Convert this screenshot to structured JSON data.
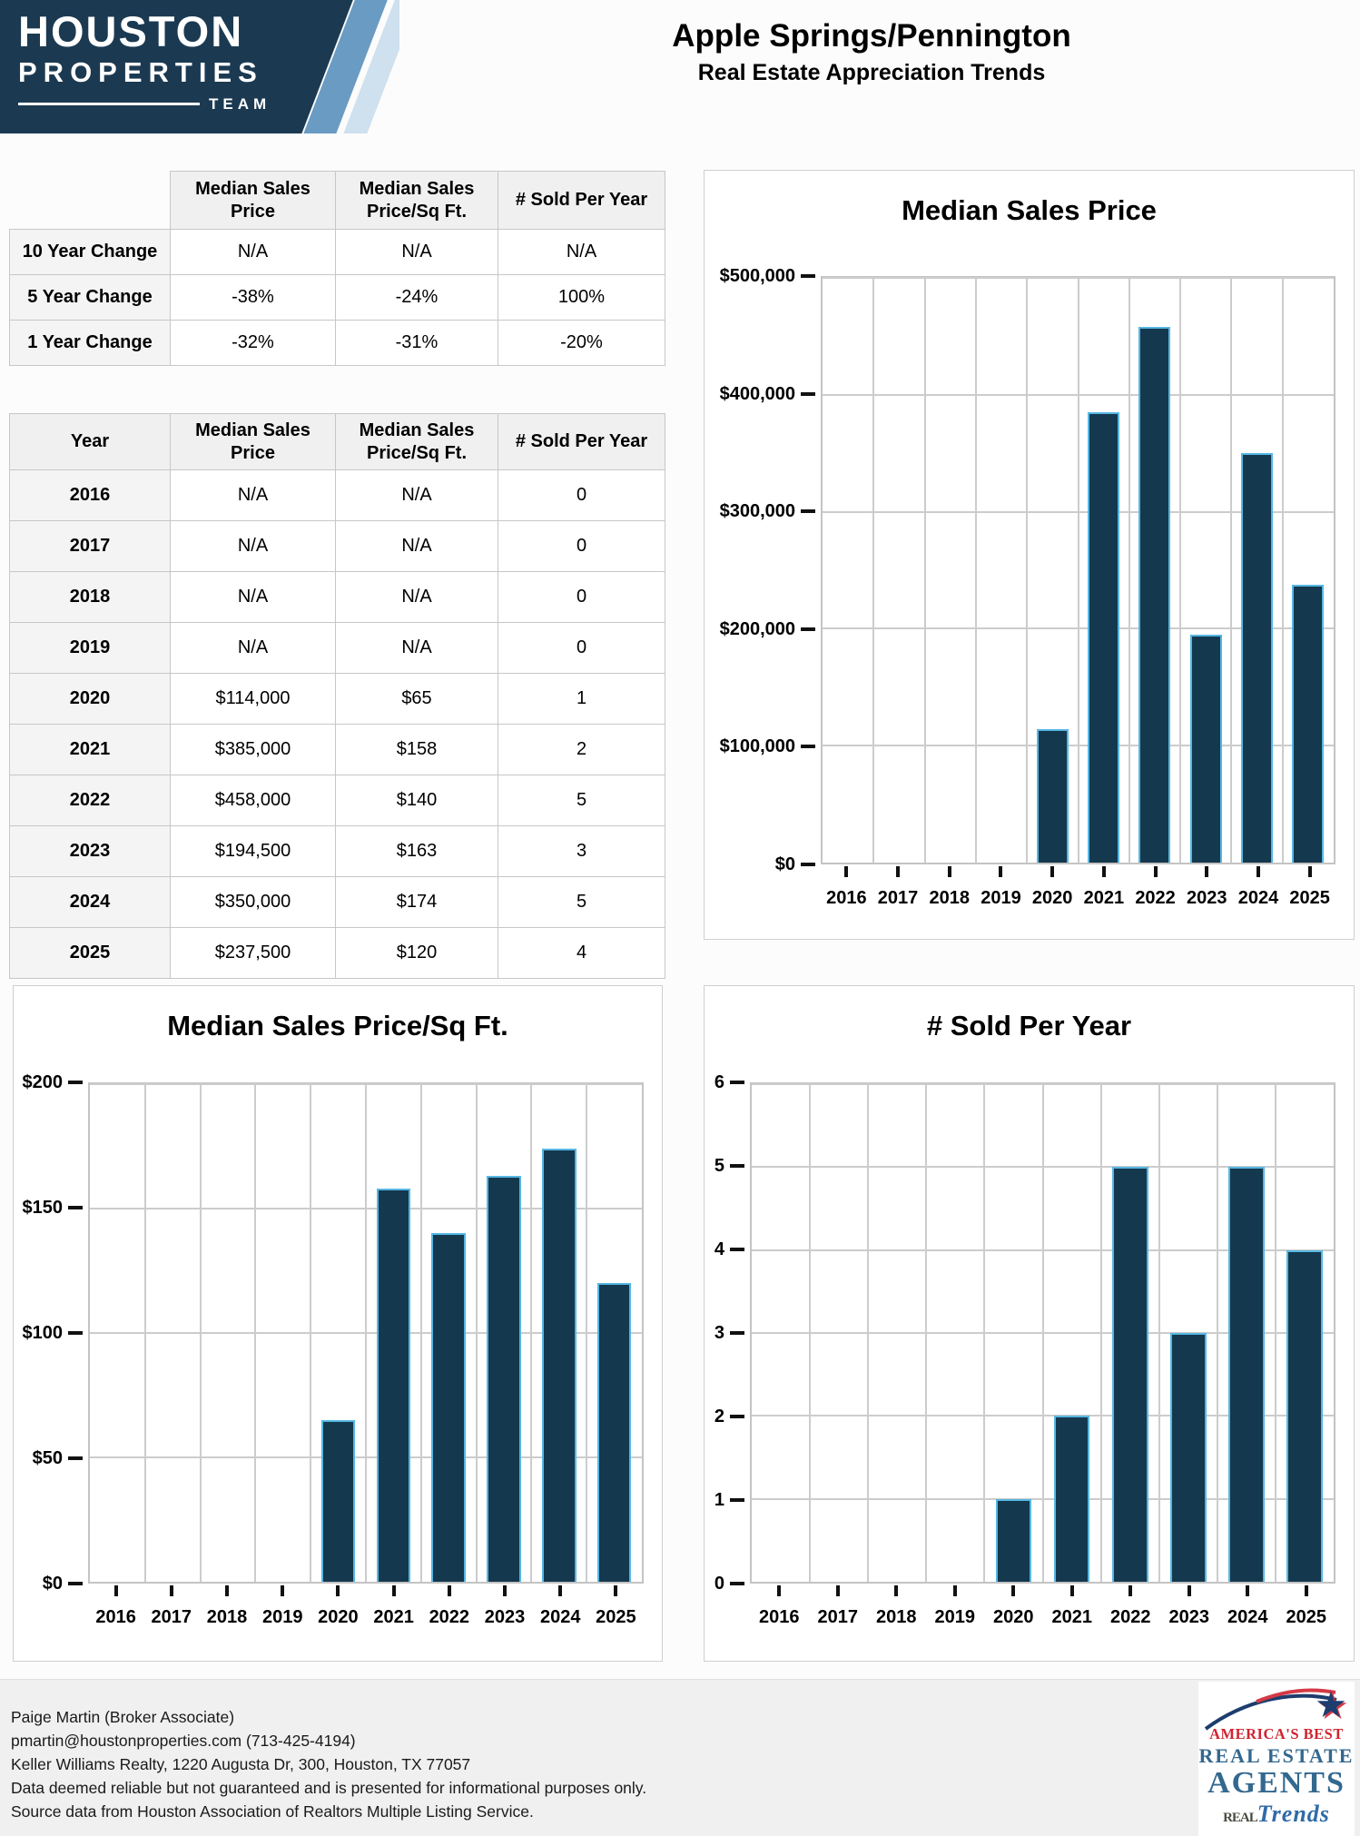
{
  "colors": {
    "bar_fill": "#14384e",
    "bar_stroke": "#56b7e3",
    "grid": "#cccccc",
    "logo_navy": "#1b3a52",
    "stripe_blue": "#6a9bc3",
    "stripe_light": "#cfe0ee",
    "badge_red": "#cf2430",
    "badge_blue": "#33688f"
  },
  "header": {
    "logo": {
      "line1": "HOUSTON",
      "line2": "PROPERTIES",
      "line3": "TEAM"
    },
    "title": "Apple Springs/Pennington",
    "subtitle": "Real Estate Appreciation Trends"
  },
  "summary_table": {
    "columns": [
      "",
      "Median Sales Price",
      "Median Sales Price/Sq Ft.",
      "# Sold Per Year"
    ],
    "rows": [
      {
        "label": "10 Year Change",
        "values": [
          "N/A",
          "N/A",
          "N/A"
        ]
      },
      {
        "label": "5 Year Change",
        "values": [
          "-38%",
          "-24%",
          "100%"
        ]
      },
      {
        "label": "1 Year Change",
        "values": [
          "-32%",
          "-31%",
          "-20%"
        ]
      }
    ]
  },
  "yearly_table": {
    "columns": [
      "Year",
      "Median Sales Price",
      "Median Sales Price/Sq Ft.",
      "# Sold Per Year"
    ],
    "rows": [
      {
        "label": "2016",
        "values": [
          "N/A",
          "N/A",
          "0"
        ]
      },
      {
        "label": "2017",
        "values": [
          "N/A",
          "N/A",
          "0"
        ]
      },
      {
        "label": "2018",
        "values": [
          "N/A",
          "N/A",
          "0"
        ]
      },
      {
        "label": "2019",
        "values": [
          "N/A",
          "N/A",
          "0"
        ]
      },
      {
        "label": "2020",
        "values": [
          "$114,000",
          "$65",
          "1"
        ]
      },
      {
        "label": "2021",
        "values": [
          "$385,000",
          "$158",
          "2"
        ]
      },
      {
        "label": "2022",
        "values": [
          "$458,000",
          "$140",
          "5"
        ]
      },
      {
        "label": "2023",
        "values": [
          "$194,500",
          "$163",
          "3"
        ]
      },
      {
        "label": "2024",
        "values": [
          "$350,000",
          "$174",
          "5"
        ]
      },
      {
        "label": "2025",
        "values": [
          "$237,500",
          "$120",
          "4"
        ]
      }
    ]
  },
  "chart_data": [
    {
      "type": "bar",
      "title": "Median Sales Price",
      "categories": [
        "2016",
        "2017",
        "2018",
        "2019",
        "2020",
        "2021",
        "2022",
        "2023",
        "2024",
        "2025"
      ],
      "values": [
        null,
        null,
        null,
        null,
        114000,
        385000,
        458000,
        194500,
        350000,
        237500
      ],
      "xlabel": "",
      "ylabel": "",
      "ylim": [
        0,
        500000
      ],
      "grid": true,
      "legend": false,
      "yticks": [
        {
          "label": "$500,000",
          "value": 500000
        },
        {
          "label": "$400,000",
          "value": 400000
        },
        {
          "label": "$300,000",
          "value": 300000
        },
        {
          "label": "$200,000",
          "value": 200000
        },
        {
          "label": "$100,000",
          "value": 100000
        },
        {
          "label": "$0",
          "value": 0
        }
      ]
    },
    {
      "type": "bar",
      "title": "Median Sales Price/Sq Ft.",
      "categories": [
        "2016",
        "2017",
        "2018",
        "2019",
        "2020",
        "2021",
        "2022",
        "2023",
        "2024",
        "2025"
      ],
      "values": [
        null,
        null,
        null,
        null,
        65,
        158,
        140,
        163,
        174,
        120
      ],
      "xlabel": "",
      "ylabel": "",
      "ylim": [
        0,
        200
      ],
      "grid": true,
      "legend": false,
      "yticks": [
        {
          "label": "$200",
          "value": 200
        },
        {
          "label": "$150",
          "value": 150
        },
        {
          "label": "$100",
          "value": 100
        },
        {
          "label": "$50",
          "value": 50
        },
        {
          "label": "$0",
          "value": 0
        }
      ]
    },
    {
      "type": "bar",
      "title": "# Sold Per Year",
      "categories": [
        "2016",
        "2017",
        "2018",
        "2019",
        "2020",
        "2021",
        "2022",
        "2023",
        "2024",
        "2025"
      ],
      "values": [
        0,
        0,
        0,
        0,
        1,
        2,
        5,
        3,
        5,
        4
      ],
      "xlabel": "",
      "ylabel": "",
      "ylim": [
        0,
        6
      ],
      "grid": true,
      "legend": false,
      "yticks": [
        {
          "label": "6",
          "value": 6
        },
        {
          "label": "5",
          "value": 5
        },
        {
          "label": "4",
          "value": 4
        },
        {
          "label": "3",
          "value": 3
        },
        {
          "label": "2",
          "value": 2
        },
        {
          "label": "1",
          "value": 1
        },
        {
          "label": "0",
          "value": 0
        }
      ]
    }
  ],
  "footer": {
    "lines": [
      "Paige Martin (Broker Associate)",
      "pmartin@houstonproperties.com (713-425-4194)",
      "Keller Williams Realty, 1220 Augusta Dr, 300, Houston, TX 77057",
      "Data deemed reliable but not guaranteed and is presented for informational purposes only.",
      "Source data from Houston Association of Realtors Multiple Listing Service."
    ]
  },
  "badge": {
    "star": "★",
    "top": "AMERICA'S BEST",
    "mid": "REAL ESTATE",
    "big": "AGENTS",
    "brand_prefix": "REAL",
    "brand_script": "Trends"
  }
}
